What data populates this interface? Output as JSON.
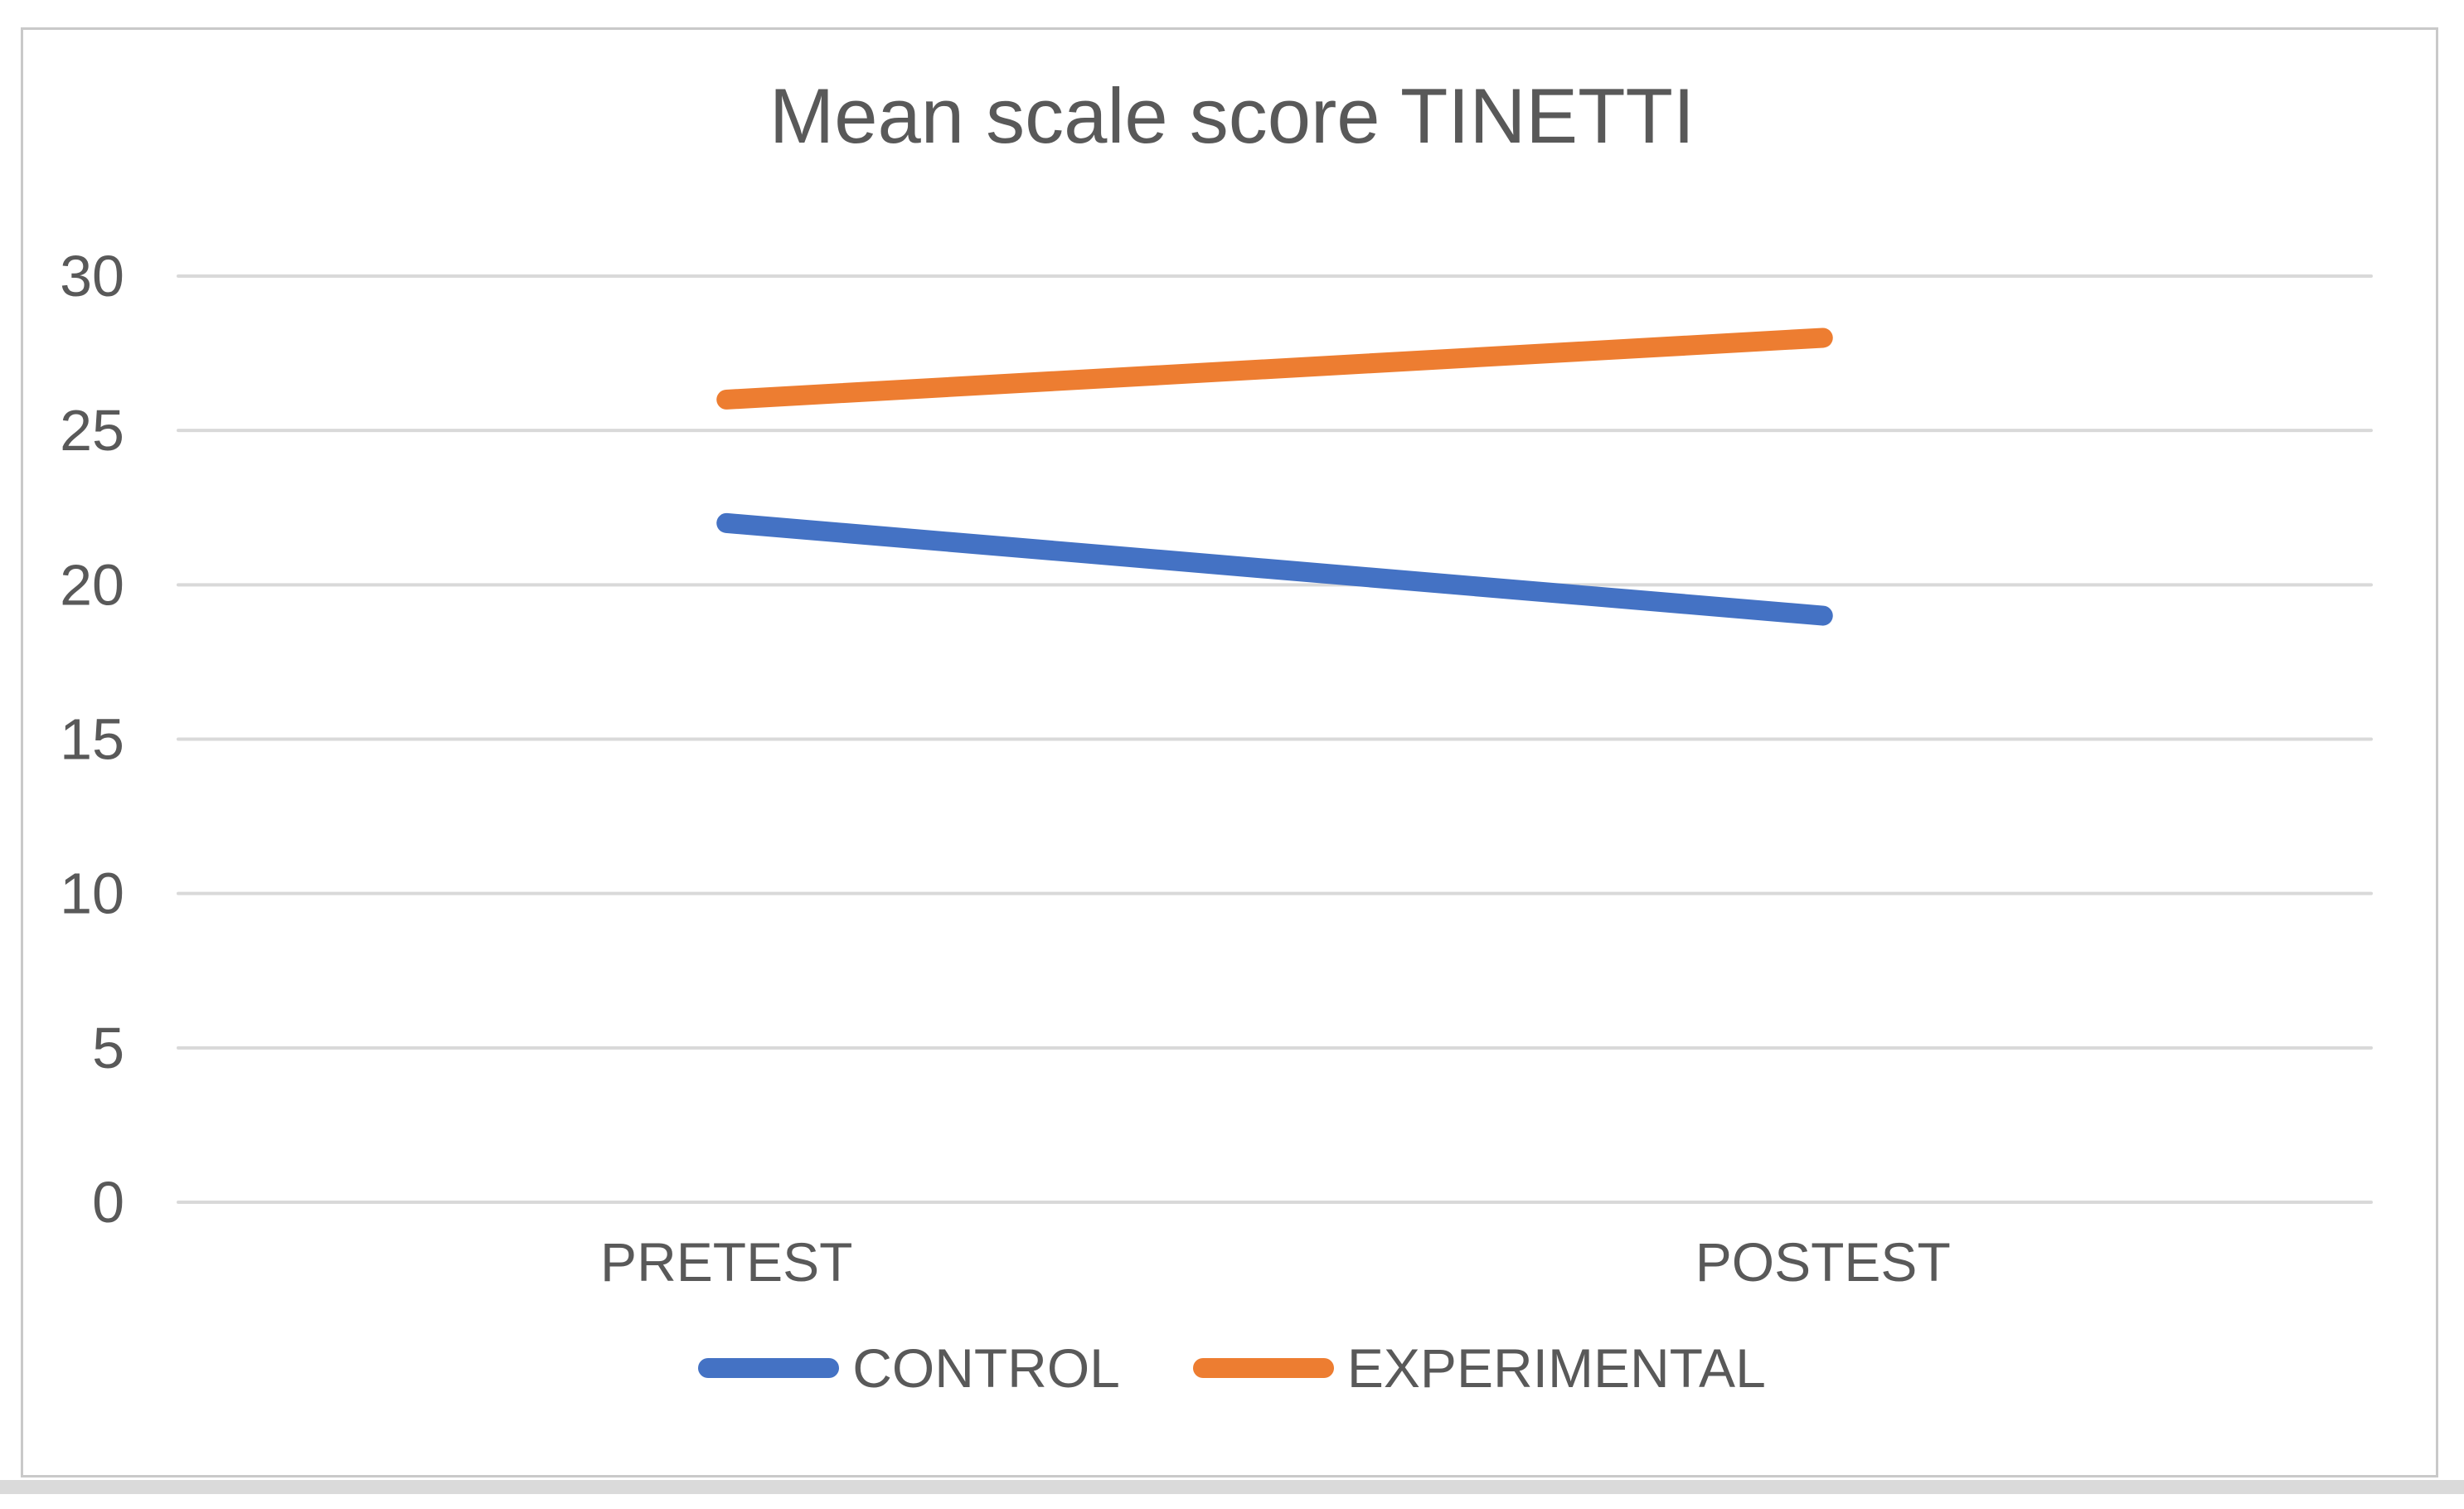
{
  "page": {
    "background_color": "#ffffff",
    "frame_border_color": "#c9c9c9",
    "bottom_strip_color": "#dadada"
  },
  "chart_data": {
    "type": "line",
    "title": "Mean scale score TINETTI",
    "categories": [
      "PRETEST",
      "POSTEST"
    ],
    "series": [
      {
        "name": "CONTROL",
        "color": "#4472C4",
        "values": [
          22,
          19
        ]
      },
      {
        "name": "EXPERIMENTAL",
        "color": "#ED7D31",
        "values": [
          26,
          28
        ]
      }
    ],
    "xlabel": "",
    "ylabel": "",
    "ylim": [
      0,
      30
    ],
    "yticks": [
      0,
      5,
      10,
      15,
      20,
      25,
      30
    ],
    "grid": true,
    "gridline_color": "#d9d9d9",
    "text_color": "#595959",
    "legend_position": "bottom"
  }
}
